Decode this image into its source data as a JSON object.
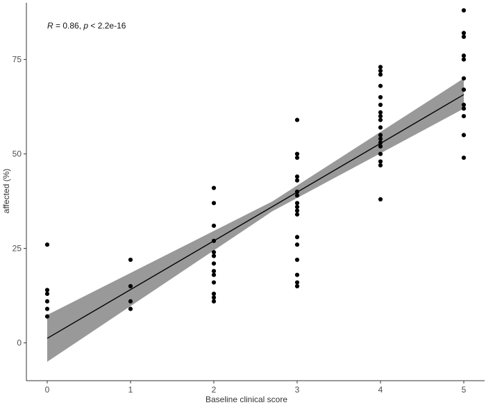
{
  "chart_data": {
    "type": "scatter",
    "title": "",
    "xlabel": "Baseline clinical score",
    "ylabel": "affected (%)",
    "xlim": [
      -0.25,
      5.25
    ],
    "ylim": [
      -10,
      90
    ],
    "xticks": [
      0,
      1,
      2,
      3,
      4,
      5
    ],
    "xtick_labels": [
      "0",
      "1",
      "2",
      "3",
      "4",
      "5"
    ],
    "yticks": [
      0,
      25,
      50,
      75
    ],
    "ytick_labels": [
      "0",
      "25",
      "50",
      "75"
    ],
    "grid": false,
    "annotation": {
      "r_symbol": "R",
      "r_text": " = 0.86, ",
      "p_symbol": "p",
      "p_text": " < 2.2e-16"
    },
    "points": [
      {
        "x": 0,
        "y": 26
      },
      {
        "x": 0,
        "y": 14
      },
      {
        "x": 0,
        "y": 13
      },
      {
        "x": 0,
        "y": 11
      },
      {
        "x": 0,
        "y": 9
      },
      {
        "x": 0,
        "y": 7
      },
      {
        "x": 1,
        "y": 22
      },
      {
        "x": 1,
        "y": 15
      },
      {
        "x": 1,
        "y": 11
      },
      {
        "x": 1,
        "y": 9
      },
      {
        "x": 2,
        "y": 41
      },
      {
        "x": 2,
        "y": 37
      },
      {
        "x": 2,
        "y": 31
      },
      {
        "x": 2,
        "y": 27
      },
      {
        "x": 2,
        "y": 24
      },
      {
        "x": 2,
        "y": 23
      },
      {
        "x": 2,
        "y": 21
      },
      {
        "x": 2,
        "y": 19
      },
      {
        "x": 2,
        "y": 18
      },
      {
        "x": 2,
        "y": 16
      },
      {
        "x": 2,
        "y": 13
      },
      {
        "x": 2,
        "y": 12
      },
      {
        "x": 2,
        "y": 11
      },
      {
        "x": 3,
        "y": 59
      },
      {
        "x": 3,
        "y": 50
      },
      {
        "x": 3,
        "y": 49
      },
      {
        "x": 3,
        "y": 44
      },
      {
        "x": 3,
        "y": 43
      },
      {
        "x": 3,
        "y": 40
      },
      {
        "x": 3,
        "y": 39
      },
      {
        "x": 3,
        "y": 37
      },
      {
        "x": 3,
        "y": 36
      },
      {
        "x": 3,
        "y": 35
      },
      {
        "x": 3,
        "y": 34
      },
      {
        "x": 3,
        "y": 28
      },
      {
        "x": 3,
        "y": 26
      },
      {
        "x": 3,
        "y": 22
      },
      {
        "x": 3,
        "y": 18
      },
      {
        "x": 3,
        "y": 16
      },
      {
        "x": 3,
        "y": 15
      },
      {
        "x": 4,
        "y": 73
      },
      {
        "x": 4,
        "y": 72
      },
      {
        "x": 4,
        "y": 71
      },
      {
        "x": 4,
        "y": 68
      },
      {
        "x": 4,
        "y": 65
      },
      {
        "x": 4,
        "y": 63
      },
      {
        "x": 4,
        "y": 61
      },
      {
        "x": 4,
        "y": 60
      },
      {
        "x": 4,
        "y": 59
      },
      {
        "x": 4,
        "y": 57
      },
      {
        "x": 4,
        "y": 55
      },
      {
        "x": 4,
        "y": 54
      },
      {
        "x": 4,
        "y": 53
      },
      {
        "x": 4,
        "y": 52
      },
      {
        "x": 4,
        "y": 50
      },
      {
        "x": 4,
        "y": 48
      },
      {
        "x": 4,
        "y": 47
      },
      {
        "x": 4,
        "y": 38
      },
      {
        "x": 5,
        "y": 88
      },
      {
        "x": 5,
        "y": 82
      },
      {
        "x": 5,
        "y": 81
      },
      {
        "x": 5,
        "y": 76
      },
      {
        "x": 5,
        "y": 75
      },
      {
        "x": 5,
        "y": 70
      },
      {
        "x": 5,
        "y": 67
      },
      {
        "x": 5,
        "y": 63
      },
      {
        "x": 5,
        "y": 62
      },
      {
        "x": 5,
        "y": 60
      },
      {
        "x": 5,
        "y": 55
      },
      {
        "x": 5,
        "y": 49
      }
    ],
    "fit": {
      "type": "linear",
      "intercept": 1.2,
      "slope": 12.9,
      "x_range": [
        0,
        5
      ],
      "ci_lower": [
        {
          "x": 0,
          "y": -5
        },
        {
          "x": 2.7,
          "y": 34.8
        },
        {
          "x": 5,
          "y": 62
        }
      ],
      "ci_upper": [
        {
          "x": 0,
          "y": 7.4
        },
        {
          "x": 2.7,
          "y": 37.4
        },
        {
          "x": 5,
          "y": 70
        }
      ]
    },
    "colors": {
      "points": "#000000",
      "fit_line": "#000000",
      "ci_band": "#999999",
      "axis": "#333333",
      "background": "#ffffff"
    }
  }
}
